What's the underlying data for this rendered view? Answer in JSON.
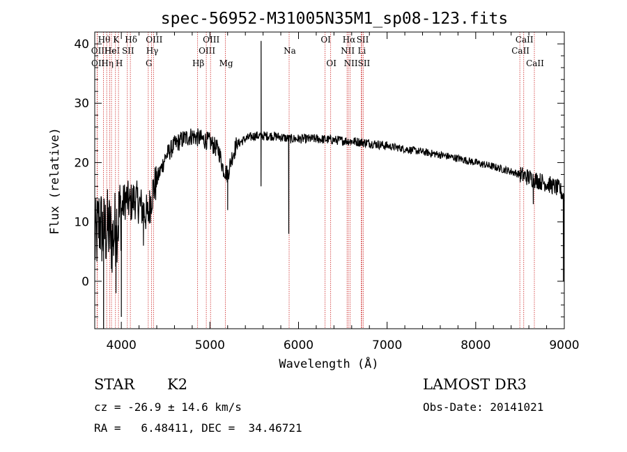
{
  "chart_data": {
    "type": "line",
    "title": "spec-56952-M31005N35M1_sp08-123.fits",
    "xlabel": "Wavelength (Å)",
    "ylabel": "Flux (relative)",
    "xlim": [
      3700,
      9000
    ],
    "ylim": [
      -8,
      42
    ],
    "xticks": [
      4000,
      5000,
      6000,
      7000,
      8000,
      9000
    ],
    "yticks": [
      0,
      10,
      20,
      30,
      40
    ],
    "continuum": [
      [
        3700,
        6
      ],
      [
        3750,
        10
      ],
      [
        3800,
        8
      ],
      [
        3850,
        9
      ],
      [
        3900,
        7
      ],
      [
        3950,
        10
      ],
      [
        4000,
        12
      ],
      [
        4050,
        14
      ],
      [
        4100,
        13
      ],
      [
        4150,
        14
      ],
      [
        4200,
        13
      ],
      [
        4250,
        12
      ],
      [
        4300,
        11
      ],
      [
        4350,
        15
      ],
      [
        4400,
        17
      ],
      [
        4450,
        19
      ],
      [
        4500,
        21
      ],
      [
        4550,
        22
      ],
      [
        4600,
        23
      ],
      [
        4700,
        24
      ],
      [
        4800,
        24.5
      ],
      [
        4900,
        24
      ],
      [
        5000,
        23.5
      ],
      [
        5100,
        22
      ],
      [
        5150,
        19
      ],
      [
        5200,
        18
      ],
      [
        5250,
        21
      ],
      [
        5300,
        23
      ],
      [
        5400,
        24
      ],
      [
        5500,
        24.5
      ],
      [
        5600,
        24.5
      ],
      [
        5700,
        24.5
      ],
      [
        5800,
        24.3
      ],
      [
        5900,
        24
      ],
      [
        6000,
        24
      ],
      [
        6200,
        24
      ],
      [
        6400,
        23.8
      ],
      [
        6600,
        23.6
      ],
      [
        6800,
        23.3
      ],
      [
        7000,
        22.8
      ],
      [
        7200,
        22.3
      ],
      [
        7400,
        21.8
      ],
      [
        7600,
        21.3
      ],
      [
        7800,
        20.7
      ],
      [
        8000,
        20
      ],
      [
        8200,
        19.3
      ],
      [
        8400,
        18.5
      ],
      [
        8600,
        17.5
      ],
      [
        8800,
        16.5
      ],
      [
        8950,
        15.5
      ],
      [
        9000,
        14
      ]
    ],
    "features": [
      {
        "x": 5578,
        "y": 40.5
      },
      {
        "x": 5577,
        "y": 16
      },
      {
        "x": 5890,
        "y": 8
      },
      {
        "x": 5200,
        "y": 12
      },
      {
        "x": 4000,
        "y": -6
      },
      {
        "x": 3940,
        "y": -2
      },
      {
        "x": 3800,
        "y": -8
      },
      {
        "x": 4250,
        "y": 6
      },
      {
        "x": 8990,
        "y": 0
      },
      {
        "x": 8650,
        "y": 13
      }
    ],
    "lines": [
      {
        "x": 3727,
        "label": "OII",
        "row": 2
      },
      {
        "x": 3729,
        "label": "OII",
        "row": 3
      },
      {
        "x": 3798,
        "label": "Hθ",
        "row": 1
      },
      {
        "x": 3835,
        "label": "Hη",
        "row": 3
      },
      {
        "x": 3869,
        "label": "He",
        "row": 2
      },
      {
        "x": 3889,
        "label": "HeI",
        "row": 2
      },
      {
        "x": 3934,
        "label": "K",
        "row": 1
      },
      {
        "x": 3968,
        "label": "H",
        "row": 3
      },
      {
        "x": 4068,
        "label": "SII",
        "row": 2
      },
      {
        "x": 4102,
        "label": "Hδ",
        "row": 1
      },
      {
        "x": 4304,
        "label": "G",
        "row": 3
      },
      {
        "x": 4341,
        "label": "Hγ",
        "row": 2
      },
      {
        "x": 4363,
        "label": "OIII",
        "row": 1
      },
      {
        "x": 4861,
        "label": "Hβ",
        "row": 3
      },
      {
        "x": 4959,
        "label": "OIII",
        "row": 2
      },
      {
        "x": 5007,
        "label": "OIII",
        "row": 1
      },
      {
        "x": 5175,
        "label": "Mg",
        "row": 3
      },
      {
        "x": 5894,
        "label": "Na",
        "row": 2
      },
      {
        "x": 6300,
        "label": "OI",
        "row": 1
      },
      {
        "x": 6363,
        "label": "OI",
        "row": 3
      },
      {
        "x": 6548,
        "label": "NII",
        "row": 2
      },
      {
        "x": 6563,
        "label": "Hα",
        "row": 1
      },
      {
        "x": 6583,
        "label": "NII",
        "row": 3
      },
      {
        "x": 6707,
        "label": "Li",
        "row": 2
      },
      {
        "x": 6716,
        "label": "SII",
        "row": 1
      },
      {
        "x": 6731,
        "label": "SII",
        "row": 3
      },
      {
        "x": 8498,
        "label": "CaII",
        "row": 2
      },
      {
        "x": 8542,
        "label": "CaII",
        "row": 1
      },
      {
        "x": 8662,
        "label": "CaII",
        "row": 3
      }
    ],
    "colors": {
      "spectrum": "#000000",
      "lines": "#cc2222",
      "axes": "#000000"
    }
  },
  "info": {
    "object_class": "STAR",
    "subclass": "K2",
    "survey": "LAMOST DR3",
    "redshift_line": "cz = -26.9 ± 14.6 km/s",
    "obs_date": "Obs-Date: 20141021",
    "coords": "RA =   6.48411, DEC =  34.46721"
  }
}
